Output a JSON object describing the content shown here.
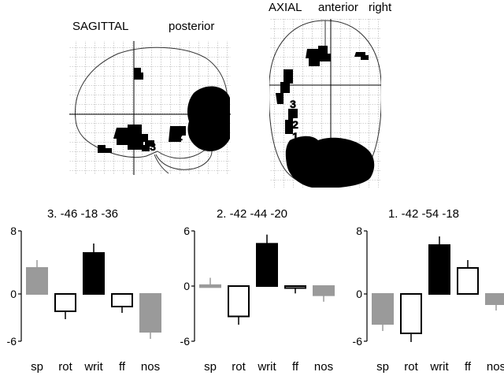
{
  "brain_views": {
    "sagittal": {
      "title": "SAGITTAL",
      "orientation": "posterior",
      "markers": [
        "2",
        "3"
      ]
    },
    "axial": {
      "title": "AXIAL",
      "orientation_1": "anterior",
      "orientation_2": "right",
      "markers": [
        "3",
        "2",
        "1"
      ],
      "star": "*"
    }
  },
  "chart_data": [
    {
      "type": "bar",
      "title": "3.   -46  -18  -36",
      "categories": [
        "sp",
        "rot",
        "writ",
        "ff",
        "nos"
      ],
      "values": [
        3.3,
        -2.2,
        5.2,
        -1.6,
        -4.8
      ],
      "errors": [
        1.0,
        1.0,
        1.2,
        0.8,
        0.9
      ],
      "fills": [
        "#9a9a9a",
        "#ffffff",
        "#000000",
        "#ffffff",
        "#9a9a9a"
      ],
      "strokes": [
        "#9a9a9a",
        "#000000",
        "#000000",
        "#000000",
        "#9a9a9a"
      ],
      "ylim": [
        -6,
        8
      ],
      "yticks": [
        "8",
        "0",
        "-6"
      ],
      "grid": false
    },
    {
      "type": "bar",
      "title": "2.   -42  -44  -20",
      "categories": [
        "sp",
        "rot",
        "writ",
        "ff",
        "nos"
      ],
      "values": [
        0.1,
        -3.3,
        4.6,
        -0.2,
        -1.0
      ],
      "errors": [
        0.8,
        0.9,
        1.0,
        0.6,
        0.7
      ],
      "fills": [
        "#9a9a9a",
        "#ffffff",
        "#000000",
        "#ffffff",
        "#9a9a9a"
      ],
      "strokes": [
        "#9a9a9a",
        "#000000",
        "#000000",
        "#000000",
        "#9a9a9a"
      ],
      "ylim": [
        -6,
        6
      ],
      "yticks": [
        "6",
        "0",
        "-6"
      ],
      "grid": false
    },
    {
      "type": "bar",
      "title": "1.   -42  -54  -18",
      "categories": [
        "sp",
        "rot",
        "writ",
        "ff",
        "nos"
      ],
      "values": [
        -3.8,
        -5.0,
        6.2,
        3.3,
        -1.3
      ],
      "errors": [
        0.9,
        1.1,
        1.1,
        1.0,
        0.8
      ],
      "fills": [
        "#9a9a9a",
        "#ffffff",
        "#000000",
        "#ffffff",
        "#9a9a9a"
      ],
      "strokes": [
        "#9a9a9a",
        "#000000",
        "#000000",
        "#000000",
        "#9a9a9a"
      ],
      "ylim": [
        -6,
        8
      ],
      "yticks": [
        "8",
        "0",
        "-6"
      ],
      "grid": false
    }
  ]
}
